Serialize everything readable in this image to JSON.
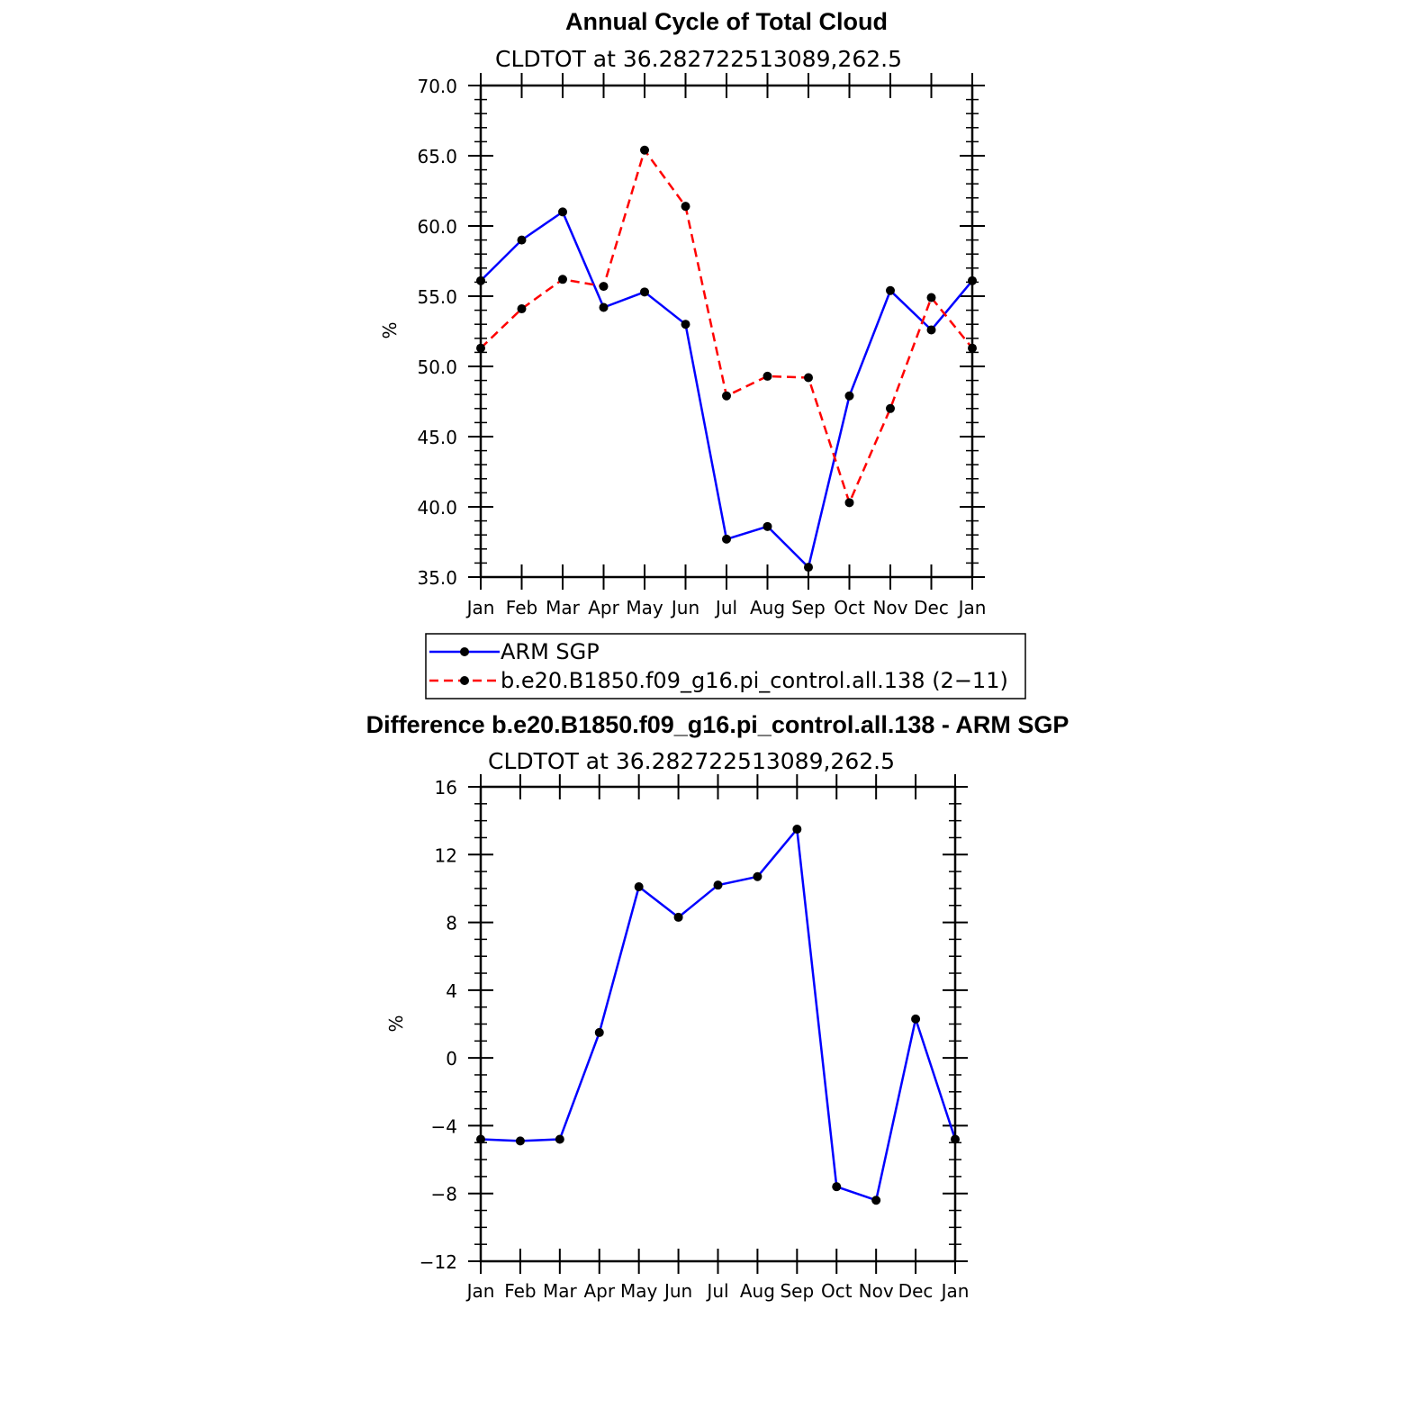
{
  "chart_data": [
    {
      "type": "line",
      "title": "Annual Cycle of Total Cloud",
      "subtitle": "CLDTOT at 36.282722513089,262.5",
      "ylabel": "%",
      "xlabel": "",
      "ylim": [
        35.0,
        70.0
      ],
      "yticks": [
        "35.0",
        "40.0",
        "45.0",
        "50.0",
        "55.0",
        "60.0",
        "65.0",
        "70.0"
      ],
      "ytick_values": [
        35,
        40,
        45,
        50,
        55,
        60,
        65,
        70
      ],
      "categories": [
        "Jan",
        "Feb",
        "Mar",
        "Apr",
        "May",
        "Jun",
        "Jul",
        "Aug",
        "Sep",
        "Oct",
        "Nov",
        "Dec",
        "Jan"
      ],
      "series": [
        {
          "name": "ARM SGP",
          "color": "#0000ff",
          "dash": "solid",
          "values": [
            56.1,
            59.0,
            61.0,
            54.2,
            55.3,
            53.0,
            37.7,
            38.6,
            35.7,
            47.9,
            55.4,
            52.6,
            56.1
          ]
        },
        {
          "name": "b.e20.B1850.f09_g16.pi_control.all.138 (2−11)",
          "color": "#ff0000",
          "dash": "dashed",
          "values": [
            51.3,
            54.1,
            56.2,
            55.7,
            65.4,
            61.4,
            47.9,
            49.3,
            49.2,
            40.3,
            47.0,
            54.9,
            51.3
          ]
        }
      ],
      "legend": "below"
    },
    {
      "type": "line",
      "title": "Difference b.e20.B1850.f09_g16.pi_control.all.138 - ARM SGP",
      "subtitle": "CLDTOT at 36.282722513089,262.5",
      "ylabel": "%",
      "xlabel": "",
      "ylim": [
        -12,
        16
      ],
      "yticks": [
        "−12",
        "−8",
        "−4",
        "0",
        "4",
        "8",
        "12",
        "16"
      ],
      "ytick_values": [
        -12,
        -8,
        -4,
        0,
        4,
        8,
        12,
        16
      ],
      "categories": [
        "Jan",
        "Feb",
        "Mar",
        "Apr",
        "May",
        "Jun",
        "Jul",
        "Aug",
        "Sep",
        "Oct",
        "Nov",
        "Dec",
        "Jan"
      ],
      "series": [
        {
          "color": "#0000ff",
          "dash": "solid",
          "values": [
            -4.8,
            -4.9,
            -4.8,
            1.5,
            10.1,
            8.3,
            10.2,
            10.7,
            13.5,
            -7.6,
            -8.4,
            2.3,
            -4.8
          ]
        }
      ]
    }
  ]
}
